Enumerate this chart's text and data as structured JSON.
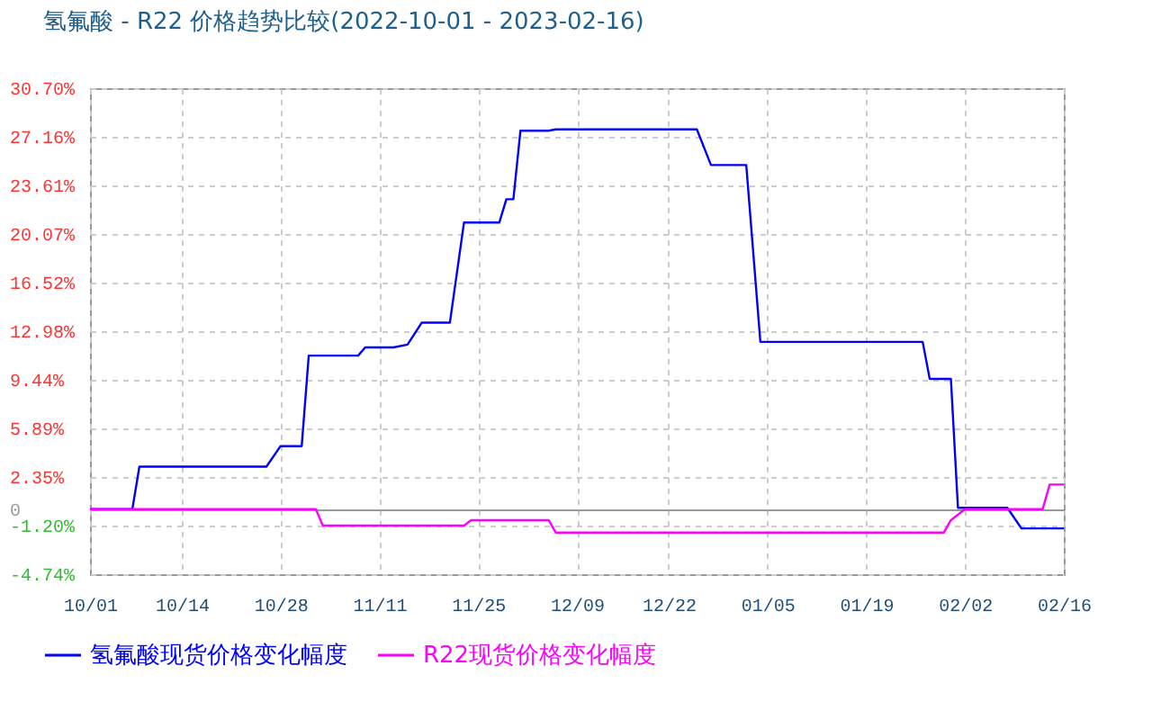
{
  "chart_data": {
    "type": "line",
    "title": "氢氟酸 - R22 价格趋势比较(2022-10-01 - 2023-02-16)",
    "xlim": [
      "2022-10-01",
      "2023-02-16"
    ],
    "xticks": [
      {
        "value": "2022-10-01",
        "label": "10/01"
      },
      {
        "value": "2022-10-14",
        "label": "10/14"
      },
      {
        "value": "2022-10-28",
        "label": "10/28"
      },
      {
        "value": "2022-11-11",
        "label": "11/11"
      },
      {
        "value": "2022-11-25",
        "label": "11/25"
      },
      {
        "value": "2022-12-09",
        "label": "12/09"
      },
      {
        "value": "2022-12-22",
        "label": "12/22"
      },
      {
        "value": "2023-01-05",
        "label": "01/05"
      },
      {
        "value": "2023-01-19",
        "label": "01/19"
      },
      {
        "value": "2023-02-02",
        "label": "02/02"
      },
      {
        "value": "2023-02-16",
        "label": "02/16"
      }
    ],
    "ylim": [
      -4.74,
      30.7
    ],
    "yticks": [
      {
        "value": 30.7,
        "label": "30.70%"
      },
      {
        "value": 27.16,
        "label": "27.16%"
      },
      {
        "value": 23.61,
        "label": "23.61%"
      },
      {
        "value": 20.07,
        "label": "20.07%"
      },
      {
        "value": 16.52,
        "label": "16.52%"
      },
      {
        "value": 12.98,
        "label": "12.98%"
      },
      {
        "value": 9.44,
        "label": "9.44%"
      },
      {
        "value": 5.89,
        "label": "5.89%"
      },
      {
        "value": 2.35,
        "label": "2.35%"
      },
      0,
      {
        "value": -1.2,
        "label": "-1.20%"
      },
      {
        "value": -4.74,
        "label": "-4.74%"
      }
    ],
    "grid": true,
    "legend": "bottom",
    "series": [
      {
        "name": "氢氟酸现货价格变化幅度",
        "color": "#0000ff",
        "x": [
          "2022-10-01",
          "2022-10-07",
          "2022-10-08",
          "2022-10-26",
          "2022-10-28",
          "2022-10-31",
          "2022-11-01",
          "2022-11-08",
          "2022-11-09",
          "2022-11-13",
          "2022-11-15",
          "2022-11-17",
          "2022-11-21",
          "2022-11-23",
          "2022-11-28",
          "2022-11-29",
          "2022-11-30",
          "2022-12-01",
          "2022-12-05",
          "2022-12-06",
          "2022-12-26",
          "2022-12-28",
          "2023-01-02",
          "2023-01-04",
          "2023-01-27",
          "2023-01-28",
          "2023-01-31",
          "2023-02-01",
          "2023-02-08",
          "2023-02-10",
          "2023-02-16"
        ],
        "values": [
          0,
          0,
          3.1,
          3.1,
          4.6,
          4.6,
          11.2,
          11.2,
          11.8,
          11.8,
          12.0,
          13.6,
          13.6,
          20.9,
          20.9,
          22.6,
          22.6,
          27.6,
          27.6,
          27.7,
          27.7,
          25.1,
          25.1,
          12.2,
          12.2,
          9.5,
          9.5,
          0.1,
          0.1,
          -1.4,
          -1.4
        ]
      },
      {
        "name": "R22现货价格变化幅度",
        "color": "#ff00ff",
        "x": [
          "2022-10-01",
          "2022-11-02",
          "2022-11-03",
          "2022-11-23",
          "2022-11-24",
          "2022-12-05",
          "2022-12-06",
          "2023-01-30",
          "2023-01-31",
          "2023-02-02",
          "2023-02-13",
          "2023-02-14",
          "2023-02-16"
        ],
        "values": [
          0,
          0,
          -1.2,
          -1.2,
          -0.8,
          -0.8,
          -1.7,
          -1.7,
          -0.8,
          0,
          0,
          1.8,
          1.8
        ]
      }
    ]
  }
}
